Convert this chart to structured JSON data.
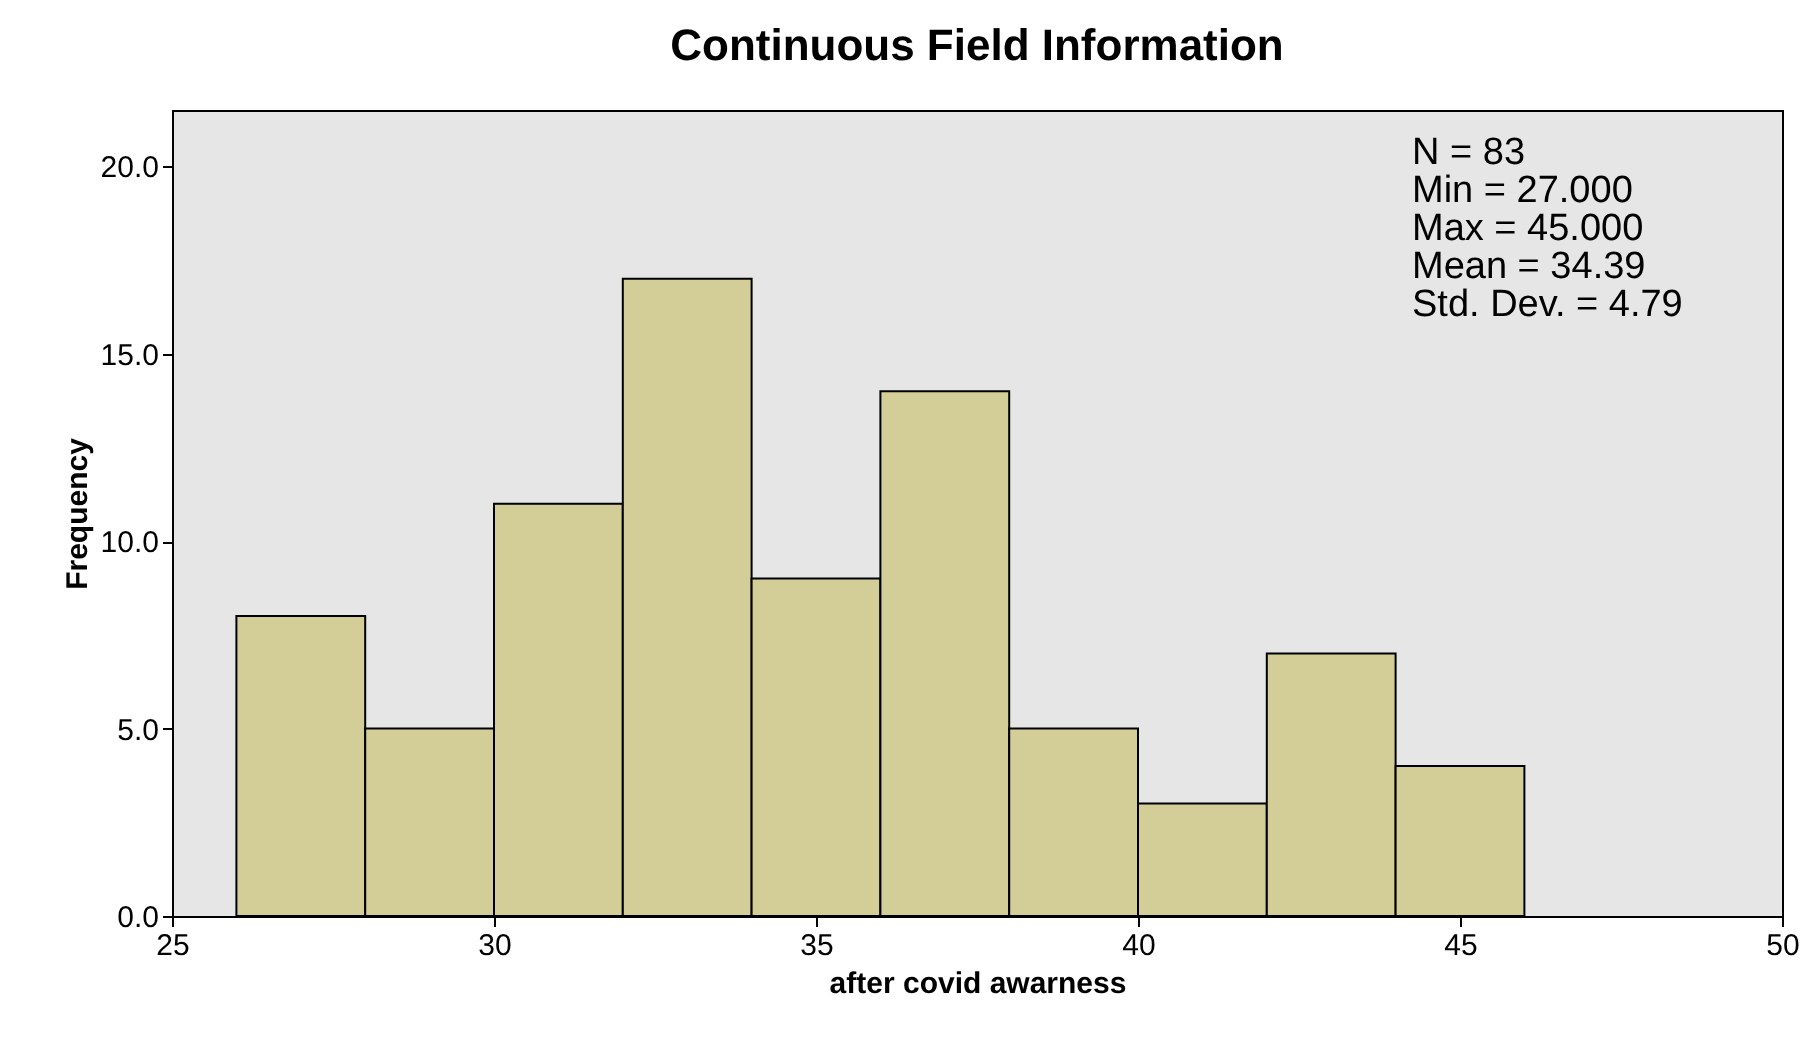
{
  "chart_data": {
    "type": "histogram",
    "title": "Continuous Field Information",
    "xlabel": "after covid awarness",
    "ylabel": "Frequency",
    "bins": [
      26,
      28,
      30,
      32,
      34,
      36,
      38,
      40,
      42,
      44,
      46
    ],
    "values": [
      8,
      5,
      11,
      17,
      9,
      14,
      5,
      3,
      7,
      4
    ],
    "color": "#d3ce97",
    "xlim": [
      25,
      50
    ],
    "xticks": [
      25,
      30,
      35,
      40,
      45,
      50
    ],
    "ylim": [
      0,
      21.5
    ],
    "yticks": [
      {
        "value": 0,
        "label": "0.0"
      },
      {
        "value": 5,
        "label": "5.0"
      },
      {
        "value": 10,
        "label": "10.0"
      },
      {
        "value": 15,
        "label": "15.0"
      },
      {
        "value": 20,
        "label": "20.0"
      }
    ],
    "annotations": [
      "N = 83",
      "Min = 27.000",
      "Max = 45.000",
      "Mean = 34.39",
      "Std. Dev. = 4.79"
    ],
    "grid": false
  }
}
